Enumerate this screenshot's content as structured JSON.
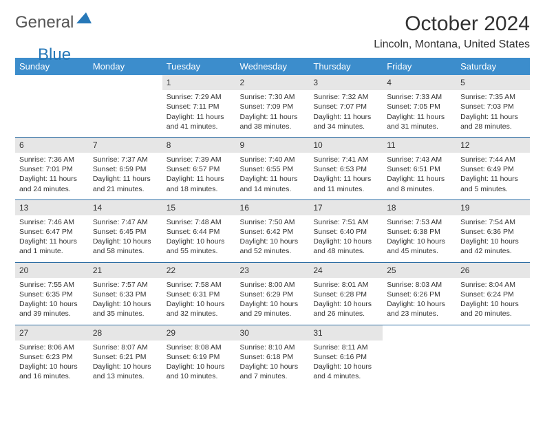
{
  "logo": {
    "general": "General",
    "blue": "Blue",
    "accent_color": "#2778b8"
  },
  "header": {
    "month_title": "October 2024",
    "location": "Lincoln, Montana, United States"
  },
  "styling": {
    "header_bg": "#3c8dcc",
    "header_text": "#ffffff",
    "daynum_bg": "#e6e6e6",
    "border_color": "#2a6ca3",
    "body_text": "#333333",
    "title_fontsize": 30,
    "location_fontsize": 16,
    "weekday_fontsize": 13,
    "daynum_fontsize": 12,
    "cell_fontsize": 10.5
  },
  "weekdays": [
    "Sunday",
    "Monday",
    "Tuesday",
    "Wednesday",
    "Thursday",
    "Friday",
    "Saturday"
  ],
  "weeks": [
    [
      null,
      null,
      {
        "n": "1",
        "sunrise": "7:29 AM",
        "sunset": "7:11 PM",
        "daylight": "11 hours and 41 minutes."
      },
      {
        "n": "2",
        "sunrise": "7:30 AM",
        "sunset": "7:09 PM",
        "daylight": "11 hours and 38 minutes."
      },
      {
        "n": "3",
        "sunrise": "7:32 AM",
        "sunset": "7:07 PM",
        "daylight": "11 hours and 34 minutes."
      },
      {
        "n": "4",
        "sunrise": "7:33 AM",
        "sunset": "7:05 PM",
        "daylight": "11 hours and 31 minutes."
      },
      {
        "n": "5",
        "sunrise": "7:35 AM",
        "sunset": "7:03 PM",
        "daylight": "11 hours and 28 minutes."
      }
    ],
    [
      {
        "n": "6",
        "sunrise": "7:36 AM",
        "sunset": "7:01 PM",
        "daylight": "11 hours and 24 minutes."
      },
      {
        "n": "7",
        "sunrise": "7:37 AM",
        "sunset": "6:59 PM",
        "daylight": "11 hours and 21 minutes."
      },
      {
        "n": "8",
        "sunrise": "7:39 AM",
        "sunset": "6:57 PM",
        "daylight": "11 hours and 18 minutes."
      },
      {
        "n": "9",
        "sunrise": "7:40 AM",
        "sunset": "6:55 PM",
        "daylight": "11 hours and 14 minutes."
      },
      {
        "n": "10",
        "sunrise": "7:41 AM",
        "sunset": "6:53 PM",
        "daylight": "11 hours and 11 minutes."
      },
      {
        "n": "11",
        "sunrise": "7:43 AM",
        "sunset": "6:51 PM",
        "daylight": "11 hours and 8 minutes."
      },
      {
        "n": "12",
        "sunrise": "7:44 AM",
        "sunset": "6:49 PM",
        "daylight": "11 hours and 5 minutes."
      }
    ],
    [
      {
        "n": "13",
        "sunrise": "7:46 AM",
        "sunset": "6:47 PM",
        "daylight": "11 hours and 1 minute."
      },
      {
        "n": "14",
        "sunrise": "7:47 AM",
        "sunset": "6:45 PM",
        "daylight": "10 hours and 58 minutes."
      },
      {
        "n": "15",
        "sunrise": "7:48 AM",
        "sunset": "6:44 PM",
        "daylight": "10 hours and 55 minutes."
      },
      {
        "n": "16",
        "sunrise": "7:50 AM",
        "sunset": "6:42 PM",
        "daylight": "10 hours and 52 minutes."
      },
      {
        "n": "17",
        "sunrise": "7:51 AM",
        "sunset": "6:40 PM",
        "daylight": "10 hours and 48 minutes."
      },
      {
        "n": "18",
        "sunrise": "7:53 AM",
        "sunset": "6:38 PM",
        "daylight": "10 hours and 45 minutes."
      },
      {
        "n": "19",
        "sunrise": "7:54 AM",
        "sunset": "6:36 PM",
        "daylight": "10 hours and 42 minutes."
      }
    ],
    [
      {
        "n": "20",
        "sunrise": "7:55 AM",
        "sunset": "6:35 PM",
        "daylight": "10 hours and 39 minutes."
      },
      {
        "n": "21",
        "sunrise": "7:57 AM",
        "sunset": "6:33 PM",
        "daylight": "10 hours and 35 minutes."
      },
      {
        "n": "22",
        "sunrise": "7:58 AM",
        "sunset": "6:31 PM",
        "daylight": "10 hours and 32 minutes."
      },
      {
        "n": "23",
        "sunrise": "8:00 AM",
        "sunset": "6:29 PM",
        "daylight": "10 hours and 29 minutes."
      },
      {
        "n": "24",
        "sunrise": "8:01 AM",
        "sunset": "6:28 PM",
        "daylight": "10 hours and 26 minutes."
      },
      {
        "n": "25",
        "sunrise": "8:03 AM",
        "sunset": "6:26 PM",
        "daylight": "10 hours and 23 minutes."
      },
      {
        "n": "26",
        "sunrise": "8:04 AM",
        "sunset": "6:24 PM",
        "daylight": "10 hours and 20 minutes."
      }
    ],
    [
      {
        "n": "27",
        "sunrise": "8:06 AM",
        "sunset": "6:23 PM",
        "daylight": "10 hours and 16 minutes."
      },
      {
        "n": "28",
        "sunrise": "8:07 AM",
        "sunset": "6:21 PM",
        "daylight": "10 hours and 13 minutes."
      },
      {
        "n": "29",
        "sunrise": "8:08 AM",
        "sunset": "6:19 PM",
        "daylight": "10 hours and 10 minutes."
      },
      {
        "n": "30",
        "sunrise": "8:10 AM",
        "sunset": "6:18 PM",
        "daylight": "10 hours and 7 minutes."
      },
      {
        "n": "31",
        "sunrise": "8:11 AM",
        "sunset": "6:16 PM",
        "daylight": "10 hours and 4 minutes."
      },
      null,
      null
    ]
  ],
  "labels": {
    "sunrise": "Sunrise:",
    "sunset": "Sunset:",
    "daylight": "Daylight:"
  }
}
